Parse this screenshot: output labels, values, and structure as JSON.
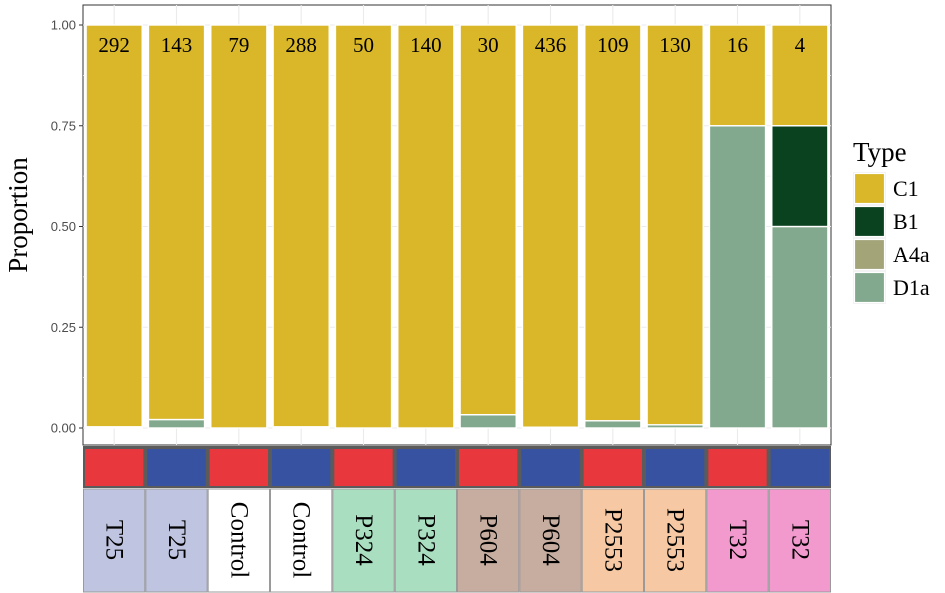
{
  "chart_data": {
    "type": "bar",
    "stacked": true,
    "ylabel": "Proportion",
    "ylim": [
      0,
      1
    ],
    "yticks": [
      0,
      0.25,
      0.5,
      0.75,
      1
    ],
    "ytick_labels": [
      "0.00",
      "0.25",
      "0.50",
      "0.75",
      "1.00"
    ],
    "grid": true,
    "legend": {
      "title": "Type",
      "placement": "right",
      "entries": [
        "C1",
        "B1",
        "A4a",
        "D1a"
      ]
    },
    "series": [
      {
        "name": "C1",
        "color": "#D9B728",
        "values": [
          0.997,
          0.979,
          1.0,
          0.997,
          1.0,
          1.0,
          0.967,
          0.998,
          0.982,
          0.992,
          0.25,
          0.25
        ]
      },
      {
        "name": "B1",
        "color": "#0A4220",
        "values": [
          0,
          0,
          0,
          0,
          0,
          0,
          0,
          0,
          0,
          0,
          0,
          0.25
        ]
      },
      {
        "name": "A4a",
        "color": "#A3A478",
        "values": [
          0,
          0,
          0,
          0,
          0,
          0,
          0,
          0,
          0,
          0,
          0,
          0
        ]
      },
      {
        "name": "D1a",
        "color": "#82A98D",
        "values": [
          0.003,
          0.021,
          0.0,
          0.003,
          0.0,
          0.0,
          0.033,
          0.002,
          0.018,
          0.008,
          0.75,
          0.5
        ]
      }
    ],
    "counts": [
      "292",
      "143",
      "79",
      "288",
      "50",
      "140",
      "30",
      "436",
      "109",
      "130",
      "16",
      "4"
    ],
    "groups": [
      "T25",
      "T25",
      "Control",
      "Control",
      "P324",
      "P324",
      "P604",
      "P604",
      "P2553",
      "P2553",
      "T32",
      "T32"
    ],
    "group_colors": [
      "#BFC5E0",
      "#BFC5E0",
      "#FFFFFF",
      "#FFFFFF",
      "#A9DFC0",
      "#A9DFC0",
      "#C7ADA0",
      "#C7ADA0",
      "#F6C9A4",
      "#F6C9A4",
      "#F29ACD",
      "#F29ACD"
    ],
    "condition_colors": [
      "#E8383D",
      "#3652A1",
      "#E8383D",
      "#3652A1",
      "#E8383D",
      "#3652A1",
      "#E8383D",
      "#3652A1",
      "#E8383D",
      "#3652A1",
      "#E8383D",
      "#3652A1"
    ]
  }
}
